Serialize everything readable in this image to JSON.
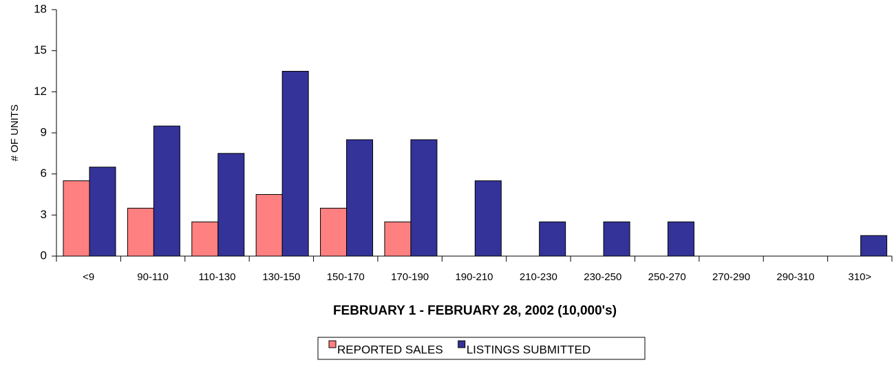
{
  "chart_data": {
    "type": "bar",
    "x_label": "FEBRUARY 1 - FEBRUARY 28, 2002 (10,000's)",
    "y_label": "# OF UNITS",
    "categories": [
      "<9",
      "90-110",
      "110-130",
      "130-150",
      "150-170",
      "170-190",
      "190-210",
      "210-230",
      "230-250",
      "250-270",
      "270-290",
      "290-310",
      "310>"
    ],
    "series": [
      {
        "name": "REPORTED SALES",
        "color": "#ff8080",
        "values": [
          5.5,
          3.5,
          2.5,
          4.5,
          3.5,
          2.5,
          0,
          0,
          0,
          0,
          0,
          0,
          0
        ]
      },
      {
        "name": "LISTINGS SUBMITTED",
        "color": "#333399",
        "values": [
          6.5,
          9.5,
          7.5,
          13.5,
          8.5,
          8.5,
          5.5,
          2.5,
          2.5,
          2.5,
          0,
          0,
          1.5
        ]
      }
    ],
    "ylim": [
      0,
      18
    ],
    "yticks": [
      0,
      3,
      6,
      9,
      12,
      15,
      18
    ],
    "grid": false,
    "legend": "bottom"
  }
}
